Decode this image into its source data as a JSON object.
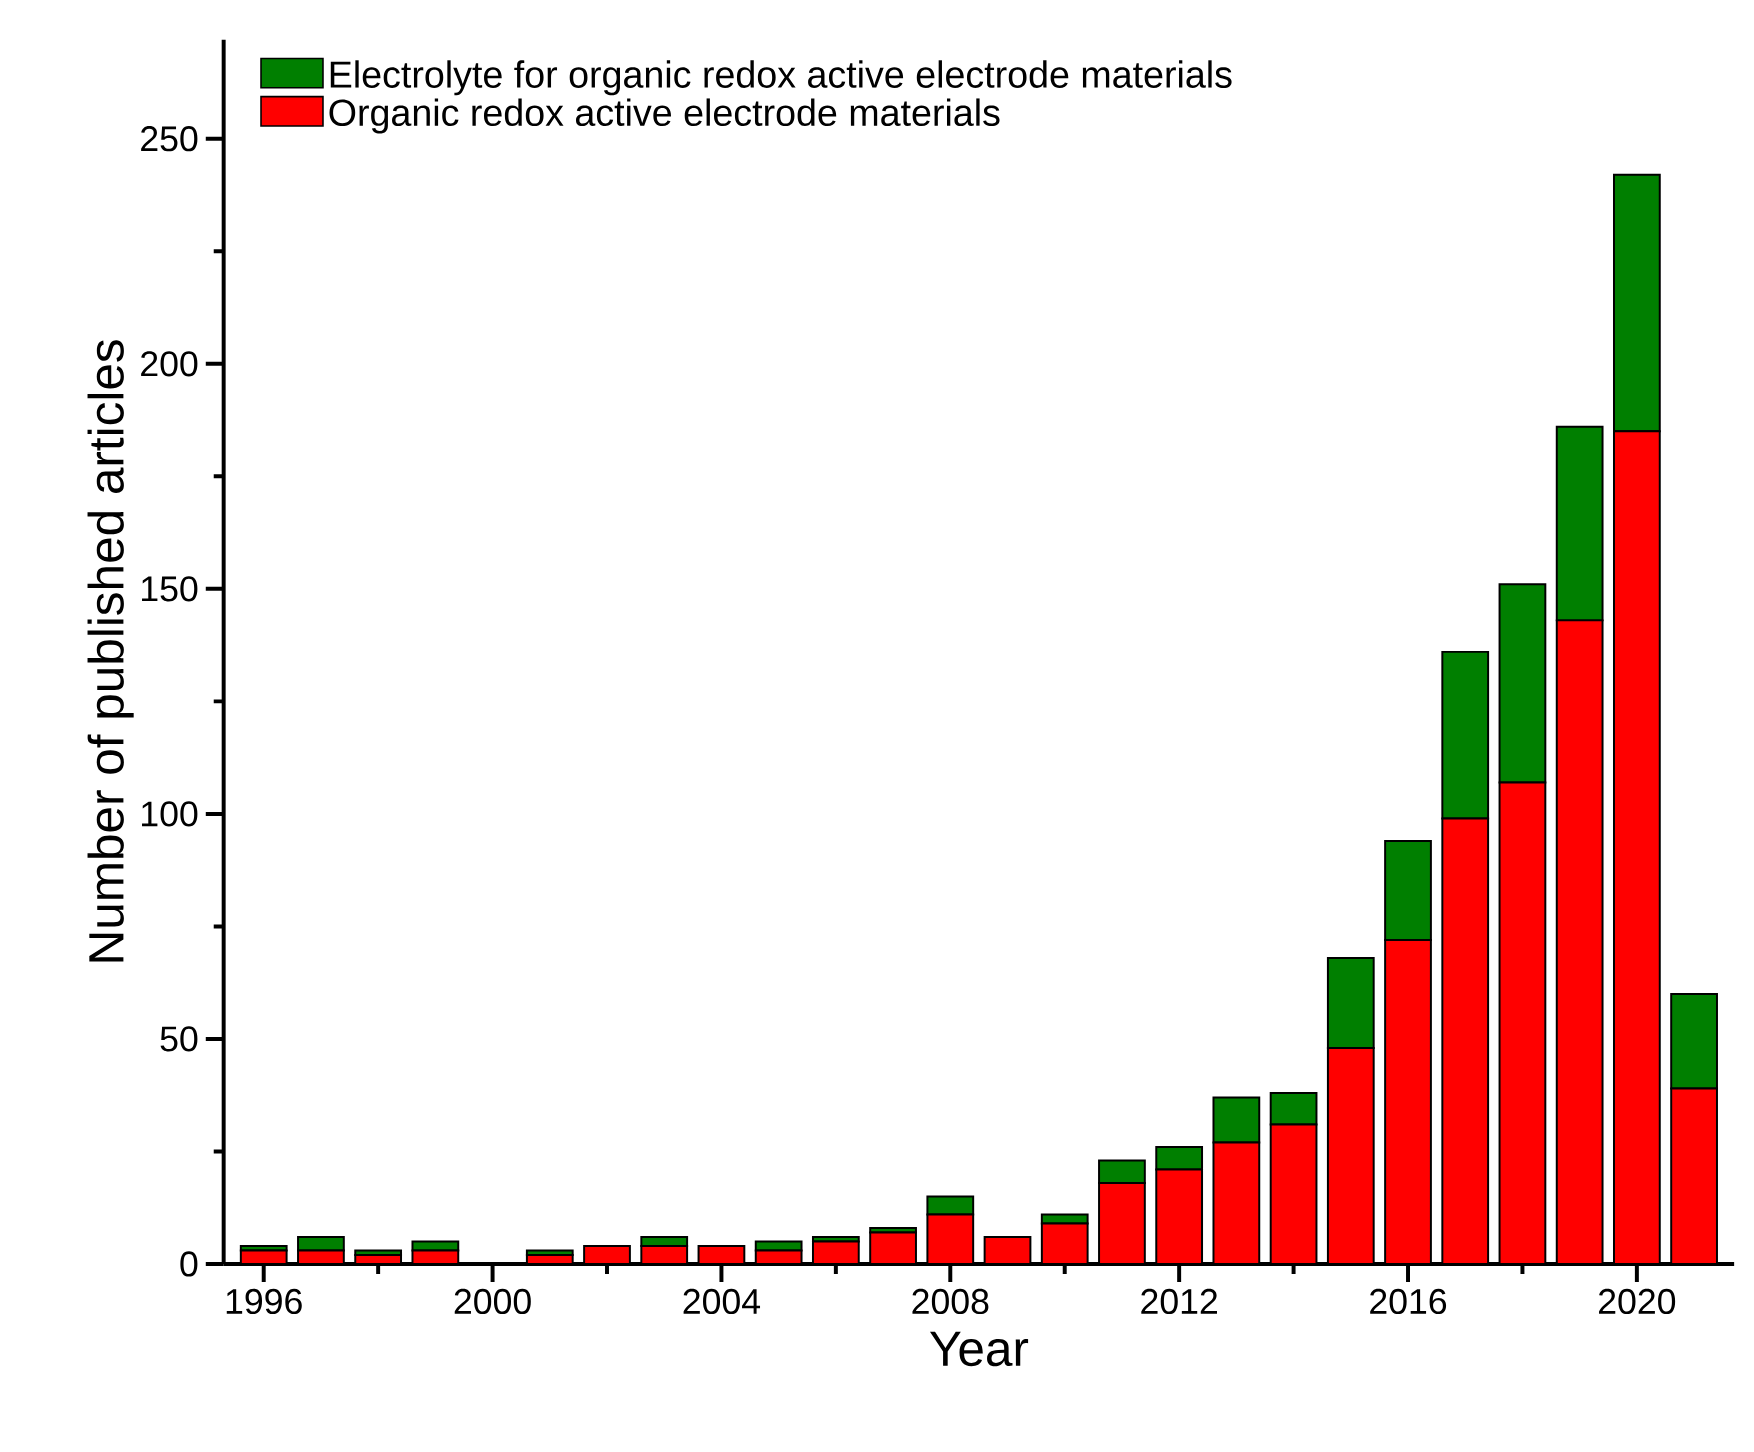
{
  "chart_data": {
    "type": "bar",
    "stacked": true,
    "xlabel": "Year",
    "ylabel": "Number of published articles",
    "x": [
      1996,
      1997,
      1998,
      1999,
      2000,
      2001,
      2002,
      2003,
      2004,
      2005,
      2006,
      2007,
      2008,
      2009,
      2010,
      2011,
      2012,
      2013,
      2014,
      2015,
      2016,
      2017,
      2018,
      2019,
      2020,
      2021
    ],
    "series": [
      {
        "name": "Organic redox active electrode materials",
        "color": "#ff0000",
        "values": [
          3,
          3,
          2,
          3,
          0,
          2,
          4,
          4,
          4,
          3,
          5,
          7,
          11,
          6,
          9,
          18,
          21,
          27,
          31,
          48,
          72,
          99,
          107,
          143,
          185,
          39
        ]
      },
      {
        "name": "Electrolyte for organic redox active electrode materials",
        "color": "#007f00",
        "values": [
          1,
          3,
          1,
          2,
          0,
          1,
          0,
          2,
          0,
          2,
          1,
          1,
          4,
          0,
          2,
          5,
          5,
          10,
          7,
          20,
          22,
          37,
          44,
          43,
          57,
          21
        ]
      }
    ],
    "xlim": [
      1995.3,
      2021.7
    ],
    "xticks": [
      1996,
      {
        "value": 1998,
        "label": null
      },
      2000,
      {
        "value": 2002,
        "label": null
      },
      2004,
      {
        "value": 2006,
        "label": null
      },
      2008,
      {
        "value": 2010,
        "label": null
      },
      2012,
      {
        "value": 2014,
        "label": null
      },
      2016,
      {
        "value": 2018,
        "label": null
      },
      2020
    ],
    "ylim": [
      0,
      272
    ],
    "yticks": [
      0,
      {
        "value": 25,
        "label": null
      },
      50,
      {
        "value": 75,
        "label": null
      },
      100,
      {
        "value": 125,
        "label": null
      },
      150,
      {
        "value": 175,
        "label": null
      },
      200,
      {
        "value": 225,
        "label": null
      },
      250
    ],
    "legend": "top left",
    "grid": false
  }
}
